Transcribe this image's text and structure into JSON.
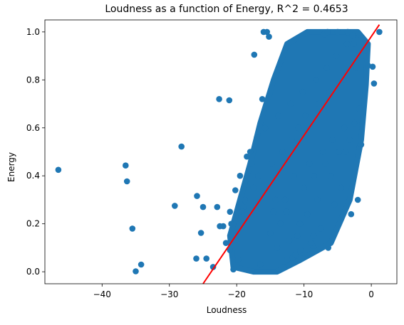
{
  "chart_data": {
    "type": "scatter",
    "title": "Loudness as a function of Energy, R^2 = 0.4653",
    "xlabel": "Loudness",
    "ylabel": "Energy",
    "xlim": [
      -48.5,
      3.8
    ],
    "ylim": [
      -0.05,
      1.05
    ],
    "xticks": [
      -40,
      -30,
      -20,
      -10,
      0
    ],
    "xtick_labels": [
      "−40",
      "−30",
      "−20",
      "−10",
      "0"
    ],
    "yticks": [
      0.0,
      0.2,
      0.4,
      0.6,
      0.8,
      1.0
    ],
    "ytick_labels": [
      "0.0",
      "0.2",
      "0.4",
      "0.6",
      "0.8",
      "1.0"
    ],
    "grid": false,
    "legend": "none",
    "series": [
      {
        "kind": "scatter",
        "color": "#1f77b4",
        "x": [
          -46.5,
          -36.5,
          -36.3,
          -35.5,
          -35.0,
          -34.2,
          -29.2,
          -28.2,
          -25.9,
          -25.0,
          -25.3,
          -22.6,
          -22.9,
          -24.5,
          -21.1,
          -21.6,
          -17.4,
          -18.0,
          -22.0,
          -26.0,
          -23.5,
          -21.0,
          -20.5,
          -19.8,
          -19.0,
          -17.0,
          -16.0,
          -15.5,
          -15.2,
          -16.2,
          -16.5,
          -14.0,
          -13.0,
          -12.5,
          -11.7,
          -11.3,
          -7.0,
          -6.5,
          -5.0,
          -3.5,
          -2.8,
          -1.0,
          -0.5,
          0.2,
          0.4,
          1.2,
          -1.5,
          -2.0,
          -3.0,
          -1.8,
          -17.8,
          -15.0,
          -8.8,
          -10.5,
          -12.2,
          -20.2,
          -19.5,
          -18.5,
          -21.0,
          -22.5,
          -4.5,
          -6.0,
          -8.0,
          -9.5,
          -7.5,
          -5.5,
          -3.8,
          -2.5,
          -9.0,
          -11.0,
          -13.5,
          -14.5,
          -12.8,
          -10.0,
          -8.5,
          -6.8,
          -4.8,
          -3.2,
          -16.8,
          -17.5,
          -18.8,
          -20.8,
          -19.2,
          -14.8,
          -13.2,
          -11.8,
          -10.8,
          -9.8,
          -7.8,
          -6.2,
          -4.2,
          -2.2,
          -1.2,
          -0.8,
          -15.8,
          -13.8,
          -12.0,
          -10.2,
          -8.2,
          -6.6,
          -5.2,
          -3.6,
          -2.6,
          -11.5,
          -9.2,
          -7.2,
          -5.8,
          -4.0,
          -14.2,
          -12.6,
          -10.6,
          -8.6,
          -6.4
        ],
        "y": [
          0.425,
          0.443,
          0.377,
          0.18,
          0.002,
          0.03,
          0.275,
          0.522,
          0.316,
          0.27,
          0.162,
          0.72,
          0.27,
          0.055,
          0.715,
          0.12,
          0.905,
          0.5,
          0.19,
          0.055,
          0.02,
          0.09,
          0.01,
          0.05,
          0.27,
          0.56,
          1.0,
          1.0,
          0.98,
          0.72,
          0.03,
          0.1,
          0.02,
          0.05,
          0.06,
          0.07,
          0.99,
          1.0,
          1.0,
          1.0,
          0.985,
          0.92,
          0.86,
          0.855,
          0.785,
          1.0,
          0.53,
          0.3,
          0.24,
          0.68,
          0.45,
          0.16,
          0.11,
          0.09,
          0.13,
          0.34,
          0.4,
          0.48,
          0.25,
          0.19,
          0.35,
          0.4,
          0.3,
          0.24,
          0.18,
          0.28,
          0.5,
          0.62,
          0.12,
          0.15,
          0.2,
          0.25,
          0.3,
          0.35,
          0.4,
          0.45,
          0.5,
          0.55,
          0.4,
          0.35,
          0.3,
          0.2,
          0.25,
          0.45,
          0.5,
          0.55,
          0.6,
          0.65,
          0.7,
          0.75,
          0.8,
          0.85,
          0.9,
          0.95,
          0.6,
          0.65,
          0.7,
          0.75,
          0.8,
          0.85,
          0.9,
          0.95,
          0.95,
          0.4,
          0.45,
          0.5,
          0.55,
          0.6,
          0.3,
          0.25,
          0.2,
          0.15,
          0.1
        ]
      },
      {
        "kind": "line",
        "color": "#ff0000",
        "x": [
          -25.0,
          1.2
        ],
        "y": [
          -0.05,
          1.03
        ]
      }
    ]
  }
}
